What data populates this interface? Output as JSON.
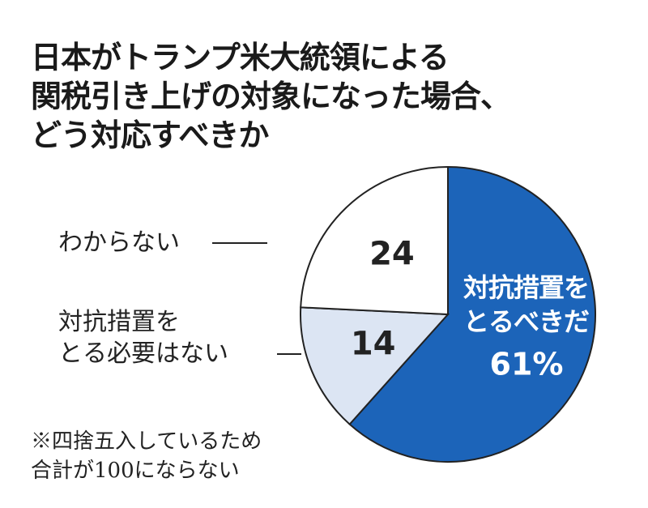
{
  "chart_data": {
    "type": "pie",
    "title": [
      "日本がトランプ米大統領による",
      "関税引き上げの対象になった場合、",
      "どう対応すべきか"
    ],
    "categories": [
      "対抗措置を\nとるべきだ",
      "対抗措置を\nとる必要はない",
      "わからない"
    ],
    "values": [
      61,
      14,
      24
    ],
    "value_labels": [
      "61%",
      "14",
      "24"
    ],
    "colors": [
      "#1c64b9",
      "#dce5f3",
      "#ffffff"
    ],
    "note": [
      "※四捨五入しているため",
      "合計が100にならない"
    ]
  }
}
